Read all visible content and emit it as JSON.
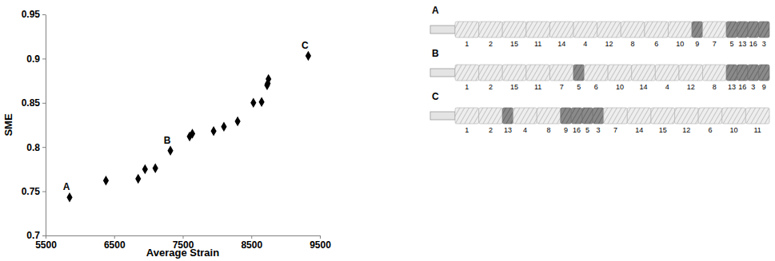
{
  "chart_data": {
    "type": "scatter",
    "x_label": "Average Strain",
    "y_label": "SME",
    "x": [
      5850,
      6380,
      6850,
      6950,
      7100,
      7320,
      7600,
      7640,
      7950,
      8100,
      8300,
      8530,
      8650,
      8730,
      8740,
      8750,
      9330
    ],
    "values": [
      0.743,
      0.762,
      0.764,
      0.775,
      0.776,
      0.796,
      0.812,
      0.815,
      0.818,
      0.823,
      0.829,
      0.85,
      0.851,
      0.87,
      0.872,
      0.877,
      0.903
    ],
    "point_labels": [
      "A",
      null,
      null,
      null,
      null,
      "B",
      null,
      null,
      null,
      null,
      null,
      null,
      null,
      null,
      null,
      null,
      "C"
    ],
    "color": "#000000",
    "marker": "diamond",
    "xlim": [
      5500,
      9500
    ],
    "xticks": [
      5500,
      6500,
      7500,
      8500,
      9500
    ],
    "ylim": [
      0.7,
      0.95
    ],
    "yticks": [
      0.7,
      0.75,
      0.8,
      0.85,
      0.9,
      0.95
    ],
    "grid": false
  },
  "screws": [
    {
      "label": "A",
      "elements": [
        {
          "label": "1",
          "kneading": false
        },
        {
          "label": "2",
          "kneading": false
        },
        {
          "label": "15",
          "kneading": false
        },
        {
          "label": "11",
          "kneading": false
        },
        {
          "label": "14",
          "kneading": false
        },
        {
          "label": "4",
          "kneading": false
        },
        {
          "label": "12",
          "kneading": false
        },
        {
          "label": "8",
          "kneading": false
        },
        {
          "label": "6",
          "kneading": false
        },
        {
          "label": "10",
          "kneading": false
        },
        {
          "label": "9",
          "kneading": true
        },
        {
          "label": "7",
          "kneading": false
        },
        {
          "label": "5",
          "kneading": true
        },
        {
          "label": "13",
          "kneading": true
        },
        {
          "label": "16",
          "kneading": true
        },
        {
          "label": "3",
          "kneading": true
        }
      ]
    },
    {
      "label": "B",
      "elements": [
        {
          "label": "1",
          "kneading": false
        },
        {
          "label": "2",
          "kneading": false
        },
        {
          "label": "15",
          "kneading": false
        },
        {
          "label": "11",
          "kneading": false
        },
        {
          "label": "7",
          "kneading": false
        },
        {
          "label": "5",
          "kneading": true
        },
        {
          "label": "6",
          "kneading": false
        },
        {
          "label": "10",
          "kneading": false
        },
        {
          "label": "14",
          "kneading": false
        },
        {
          "label": "4",
          "kneading": false
        },
        {
          "label": "12",
          "kneading": false
        },
        {
          "label": "8",
          "kneading": false
        },
        {
          "label": "13",
          "kneading": true
        },
        {
          "label": "16",
          "kneading": true
        },
        {
          "label": "3",
          "kneading": true
        },
        {
          "label": "9",
          "kneading": true
        }
      ]
    },
    {
      "label": "C",
      "elements": [
        {
          "label": "1",
          "kneading": false
        },
        {
          "label": "2",
          "kneading": false
        },
        {
          "label": "13",
          "kneading": true
        },
        {
          "label": "4",
          "kneading": false
        },
        {
          "label": "8",
          "kneading": false
        },
        {
          "label": "9",
          "kneading": true
        },
        {
          "label": "16",
          "kneading": true
        },
        {
          "label": "5",
          "kneading": true
        },
        {
          "label": "3",
          "kneading": true
        },
        {
          "label": "7",
          "kneading": false
        },
        {
          "label": "14",
          "kneading": false
        },
        {
          "label": "15",
          "kneading": false
        },
        {
          "label": "12",
          "kneading": false
        },
        {
          "label": "6",
          "kneading": false
        },
        {
          "label": "10",
          "kneading": false
        },
        {
          "label": "11",
          "kneading": false
        }
      ]
    }
  ]
}
